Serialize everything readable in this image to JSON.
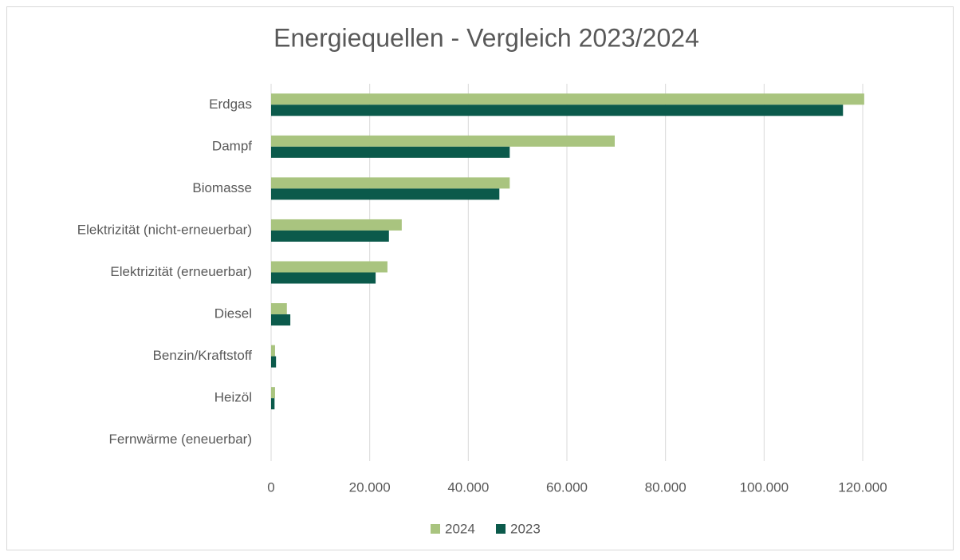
{
  "chart_data": {
    "type": "hbar",
    "title": "Energiequellen - Vergleich 2023/2024",
    "categories": [
      "Erdgas",
      "Dampf",
      "Biomasse",
      "Elektrizität (nicht-erneuerbar)",
      "Elektrizität (erneuerbar)",
      "Diesel",
      "Benzin/Kraftstoff",
      "Heizöl",
      "Fernwärme (eneuerbar)"
    ],
    "series": [
      {
        "name": "2024",
        "color": "#a9c47f",
        "values": [
          120300,
          69700,
          48400,
          26500,
          23600,
          3200,
          800,
          800,
          0
        ]
      },
      {
        "name": "2023",
        "color": "#0b5a4b",
        "values": [
          116000,
          48400,
          46300,
          23900,
          21200,
          3900,
          1000,
          700,
          0
        ]
      }
    ],
    "xlim": [
      0,
      120000
    ],
    "xticks": [
      0,
      {
        "value": 20000,
        "label": "20.000"
      },
      {
        "value": 40000,
        "label": "40.000"
      },
      {
        "value": 60000,
        "label": "60.000"
      },
      {
        "value": 80000,
        "label": "80.000"
      },
      {
        "value": 100000,
        "label": "100.000"
      },
      {
        "value": 120000,
        "label": "120.000"
      }
    ],
    "grid": true,
    "legend": "bottom"
  }
}
